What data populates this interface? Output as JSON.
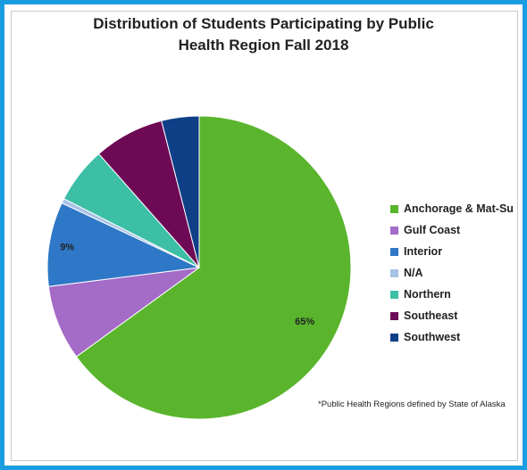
{
  "chart_data": {
    "type": "pie",
    "title": [
      "Distribution of Students Participating by Public",
      "Health Region Fall 2018"
    ],
    "categories": [
      "Anchorage & Mat-Su",
      "Gulf Coast",
      "Interior",
      "N/A",
      "Northern",
      "Southeast",
      "Southwest"
    ],
    "values": [
      65,
      8,
      9,
      0.5,
      6,
      7.5,
      4
    ],
    "colors": [
      "#5ab52d",
      "#a46bc7",
      "#2f78c7",
      "#a8c2e6",
      "#3dbfa6",
      "#6e0a55",
      "#0e3f87"
    ],
    "data_labels": [
      "65%",
      "",
      "9%",
      "",
      "",
      "",
      ""
    ],
    "legend_position": "right",
    "footnote": "*Public Health Regions defined by State of Alaska"
  }
}
